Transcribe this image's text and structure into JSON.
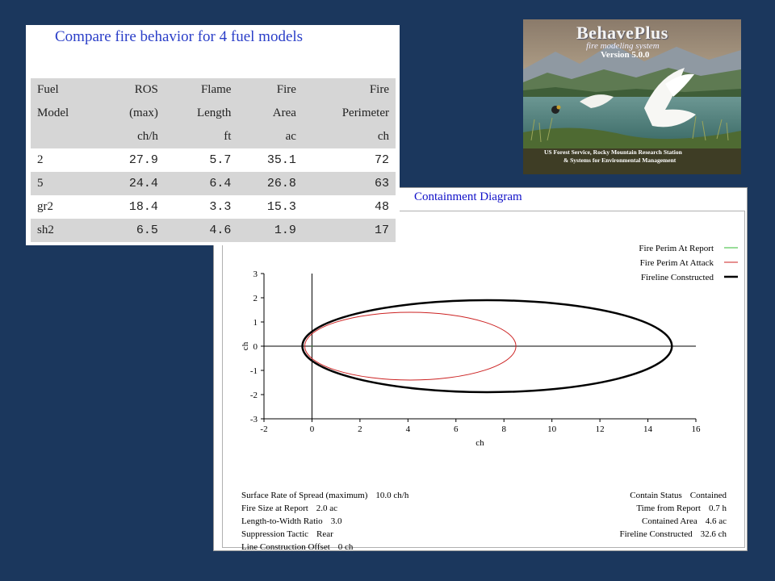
{
  "table_panel": {
    "title": "Compare fire behavior for 4 fuel models",
    "headers": [
      [
        "Fuel",
        "Model",
        ""
      ],
      [
        "ROS",
        "(max)",
        "ch/h"
      ],
      [
        "Flame",
        "Length",
        "ft"
      ],
      [
        "Fire",
        "Area",
        "ac"
      ],
      [
        "Fire",
        "Perimeter",
        "ch"
      ]
    ],
    "rows": [
      [
        "2",
        "27.9",
        "5.7",
        "35.1",
        "72"
      ],
      [
        "5",
        "24.4",
        "6.4",
        "26.8",
        "63"
      ],
      [
        "gr2",
        "18.4",
        "3.3",
        "15.3",
        "48"
      ],
      [
        "sh2",
        "6.5",
        "4.6",
        "1.9",
        "17"
      ]
    ]
  },
  "logo": {
    "name": "BehavePlus",
    "subtitle": "fire modeling system",
    "version": "Version 5.0.0",
    "org_line1": "US Forest Service, Rocky Mountain Research Station",
    "org_line2": "& Systems for Environmental Management"
  },
  "diagram": {
    "title": "Containment Diagram",
    "stats_left": [
      {
        "label": "Surface Rate of Spread (maximum)",
        "value": "10.0 ch/h"
      },
      {
        "label": "Fire Size at Report",
        "value": "2.0 ac"
      },
      {
        "label": "Length-to-Width Ratio",
        "value": "3.0"
      },
      {
        "label": "Suppression Tactic",
        "value": "Rear"
      },
      {
        "label": "Line Construction Offset",
        "value": "0 ch"
      }
    ],
    "stats_right": [
      {
        "label": "Contain Status",
        "value": "Contained"
      },
      {
        "label": "Time from Report",
        "value": "0.7 h"
      },
      {
        "label": "Contained Area",
        "value": "4.6 ac"
      },
      {
        "label": "Fireline Constructed",
        "value": "32.6 ch"
      }
    ]
  },
  "chart_data": {
    "type": "line",
    "title": "Containment Diagram",
    "xlabel": "ch",
    "ylabel": "ch",
    "xlim": [
      -2,
      16
    ],
    "ylim": [
      -3,
      3
    ],
    "xticks": [
      -2,
      0,
      2,
      4,
      6,
      8,
      10,
      12,
      14,
      16
    ],
    "yticks": [
      3,
      2,
      1,
      0,
      -1,
      -2,
      -3
    ],
    "legend_position": "top-right",
    "series": [
      {
        "name": "Fire Perim At Report",
        "color": "#33bb33",
        "center": [
          0,
          0
        ],
        "semi_axes": [
          0,
          0
        ]
      },
      {
        "name": "Fire Perim At Attack",
        "color": "#cc2222",
        "center": [
          4.1,
          0
        ],
        "semi_axes": [
          4.4,
          1.4
        ]
      },
      {
        "name": "Fireline Constructed",
        "color": "#000000",
        "center": [
          7.3,
          0
        ],
        "semi_axes": [
          7.7,
          1.9
        ]
      }
    ]
  }
}
